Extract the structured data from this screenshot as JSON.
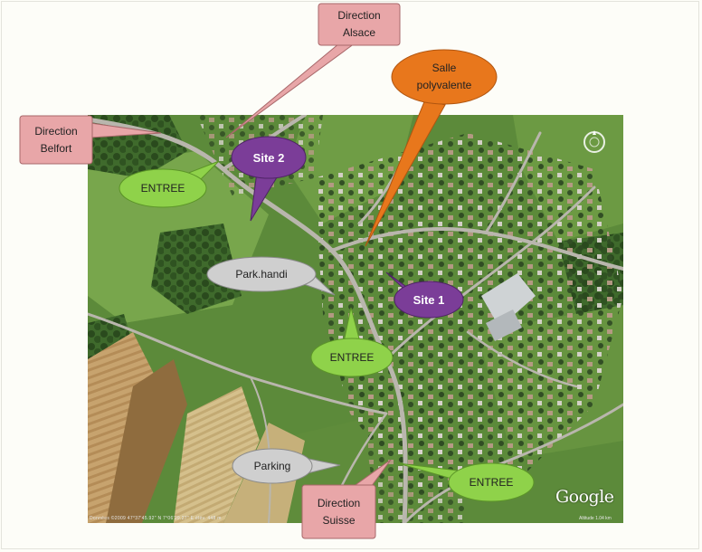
{
  "callouts": {
    "direction_alsace": "Direction\nAlsace",
    "direction_belfort": "Direction\nBelfort",
    "salle_polyvalente": "Salle\npolyvalente",
    "site_2": "Site 2",
    "site_1": "Site 1",
    "entree_top": "ENTREE",
    "entree_middle": "ENTREE",
    "entree_bottom": "ENTREE",
    "park_handi": "Park.handi",
    "parking": "Parking",
    "direction_suisse": "Direction\nSuisse"
  },
  "map": {
    "attribution": "Google",
    "footer_left": "Données ©2009   47°37'45.92\" N   7°06'29.27\" E   élév. 448 m",
    "footer_right": "Altitude 1.04 km"
  },
  "colors": {
    "direction_callout": "#e8a6a8",
    "salle_callout": "#e8771c",
    "site_callout": "#7b3d98",
    "entree_callout": "#8fd24a",
    "parking_callout": "#cfcfcf"
  }
}
